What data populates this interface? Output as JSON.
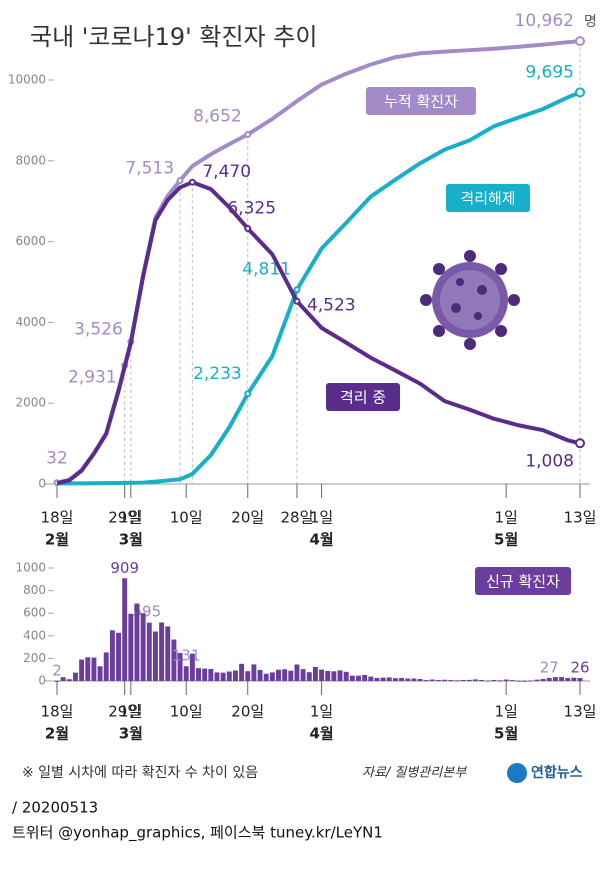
{
  "chart_data": [
    {
      "type": "line",
      "title": "국내 '코로나19' 확진자 추이",
      "unit": "명",
      "x": [
        0,
        2,
        4,
        6,
        8,
        10,
        11,
        12,
        14,
        16,
        18,
        20,
        22,
        25,
        28,
        31,
        35,
        39,
        43,
        47,
        51,
        55,
        59,
        63,
        67,
        71,
        75,
        79,
        83,
        85
      ],
      "series": [
        {
          "name": "누적 확진자",
          "color": "#a38bc9",
          "values": [
            32,
            104,
            346,
            763,
            1261,
            2337,
            2931,
            3526,
            5186,
            6593,
            7134,
            7513,
            7869,
            8162,
            8413,
            8652,
            9037,
            9478,
            9887,
            10156,
            10384,
            10564,
            10661,
            10702,
            10738,
            10774,
            10822,
            10874,
            10936,
            10962
          ],
          "value_labels": [
            "32",
            null,
            null,
            null,
            null,
            null,
            "2,931",
            "3,526",
            null,
            null,
            null,
            "7,513",
            null,
            null,
            null,
            "8,652",
            null,
            null,
            null,
            null,
            null,
            null,
            null,
            null,
            null,
            null,
            null,
            null,
            null,
            "10,962"
          ]
        },
        {
          "name": "격리해제",
          "color": "#17afc9",
          "values": [
            12,
            14,
            17,
            20,
            22,
            25,
            27,
            30,
            34,
            60,
            88,
            118,
            247,
            714,
            1401,
            2233,
            3166,
            4811,
            5828,
            6463,
            7117,
            7534,
            7937,
            8277,
            8501,
            8854,
            9072,
            9283,
            9568,
            9695
          ],
          "value_labels": [
            null,
            null,
            null,
            null,
            null,
            null,
            null,
            null,
            null,
            null,
            null,
            null,
            null,
            null,
            null,
            "2,233",
            null,
            "4,811",
            null,
            null,
            null,
            null,
            null,
            null,
            null,
            null,
            null,
            null,
            null,
            "9,695"
          ]
        },
        {
          "name": "격리 중",
          "color": "#5a2c8c",
          "values": [
            20,
            90,
            330,
            750,
            1240,
            2300,
            2900,
            3490,
            5140,
            6530,
            7030,
            7340,
            7470,
            7300,
            6850,
            6325,
            5684,
            4523,
            3865,
            3500,
            3125,
            2808,
            2484,
            2051,
            1843,
            1616,
            1454,
            1332,
            1082,
            1008
          ],
          "value_labels": [
            null,
            null,
            null,
            null,
            null,
            null,
            null,
            null,
            null,
            null,
            null,
            null,
            "7,470",
            null,
            null,
            "6,325",
            null,
            "4,523",
            null,
            null,
            null,
            null,
            null,
            null,
            null,
            null,
            null,
            null,
            null,
            "1,008"
          ]
        }
      ],
      "xlim": [
        0,
        85
      ],
      "xticks": [
        {
          "value": 0,
          "label": "18일"
        },
        {
          "value": 11,
          "label": "29일"
        },
        {
          "value": 12,
          "label": "1일"
        },
        {
          "value": 21,
          "label": "10일"
        },
        {
          "value": 31,
          "label": "20일"
        },
        {
          "value": 39,
          "label": "28일"
        },
        {
          "value": 43,
          "label": "1일"
        },
        {
          "value": 73,
          "label": "1일"
        },
        {
          "value": 85,
          "label": "13일"
        }
      ],
      "months": [
        {
          "value": 0,
          "label": "2월"
        },
        {
          "value": 12,
          "label": "3월"
        },
        {
          "value": 43,
          "label": "4월"
        },
        {
          "value": 73,
          "label": "5월"
        }
      ],
      "ylim": [
        0,
        10000
      ],
      "yticks": [
        0,
        2000,
        4000,
        6000,
        8000,
        10000
      ]
    },
    {
      "type": "bar",
      "series_name": "신규 확진자",
      "color": "#6b3d9c",
      "x": [
        0,
        1,
        2,
        3,
        4,
        5,
        6,
        7,
        8,
        9,
        10,
        11,
        12,
        13,
        14,
        15,
        16,
        17,
        18,
        19,
        20,
        21,
        22,
        23,
        24,
        25,
        26,
        27,
        28,
        29,
        30,
        31,
        32,
        33,
        34,
        35,
        36,
        37,
        38,
        39,
        40,
        41,
        42,
        43,
        44,
        45,
        46,
        47,
        48,
        49,
        50,
        51,
        52,
        53,
        54,
        55,
        56,
        57,
        58,
        59,
        60,
        61,
        62,
        63,
        64,
        65,
        66,
        67,
        68,
        69,
        70,
        71,
        72,
        73,
        74,
        75,
        76,
        77,
        78,
        79,
        80,
        81,
        82,
        83,
        84,
        85
      ],
      "values": [
        2,
        34,
        16,
        74,
        190,
        210,
        207,
        130,
        253,
        449,
        427,
        909,
        595,
        686,
        600,
        516,
        438,
        518,
        483,
        367,
        248,
        131,
        242,
        114,
        110,
        107,
        76,
        74,
        84,
        93,
        152,
        87,
        147,
        98,
        64,
        76,
        100,
        104,
        91,
        146,
        105,
        78,
        125,
        101,
        89,
        86,
        94,
        81,
        47,
        47,
        53,
        39,
        27,
        30,
        32,
        25,
        27,
        22,
        22,
        18,
        8,
        13,
        9,
        11,
        8,
        6,
        9,
        10,
        14,
        9,
        4,
        9,
        6,
        13,
        8,
        3,
        2,
        4,
        12,
        18,
        27,
        34,
        35,
        26,
        29,
        26
      ],
      "value_labels": [
        "2",
        null,
        null,
        null,
        null,
        null,
        null,
        null,
        null,
        null,
        null,
        "909",
        "595",
        null,
        null,
        null,
        null,
        null,
        null,
        null,
        null,
        "131",
        null,
        null,
        null,
        null,
        null,
        null,
        null,
        null,
        null,
        null,
        null,
        null,
        null,
        null,
        null,
        null,
        null,
        null,
        null,
        null,
        null,
        null,
        null,
        null,
        null,
        null,
        null,
        null,
        null,
        null,
        null,
        null,
        null,
        null,
        null,
        null,
        null,
        null,
        null,
        null,
        null,
        null,
        null,
        null,
        null,
        null,
        null,
        null,
        null,
        null,
        null,
        null,
        null,
        null,
        null,
        null,
        null,
        null,
        "27",
        null,
        null,
        null,
        null,
        "26"
      ],
      "xlim": [
        0,
        85
      ],
      "xticks": [
        {
          "value": 0,
          "label": "18일"
        },
        {
          "value": 11,
          "label": "29일"
        },
        {
          "value": 12,
          "label": "1일"
        },
        {
          "value": 21,
          "label": "10일"
        },
        {
          "value": 31,
          "label": "20일"
        },
        {
          "value": 43,
          "label": "1일"
        },
        {
          "value": 73,
          "label": "1일"
        },
        {
          "value": 85,
          "label": "13일"
        }
      ],
      "months": [
        {
          "value": 0,
          "label": "2월"
        },
        {
          "value": 12,
          "label": "3월"
        },
        {
          "value": 43,
          "label": "4월"
        },
        {
          "value": 73,
          "label": "5월"
        }
      ],
      "ylim": [
        0,
        1000
      ],
      "yticks": [
        0,
        200,
        400,
        600,
        800,
        1000
      ]
    }
  ],
  "footer": {
    "note": "※ 일별 시차에 따라 확진자 수 차이 있음",
    "source": "자료/ 질병관리본부",
    "brand": "연합뉴스",
    "date": "/ 20200513",
    "social": "트위터 @yonhap_graphics, 페이스북 tuney.kr/LeYN1"
  }
}
